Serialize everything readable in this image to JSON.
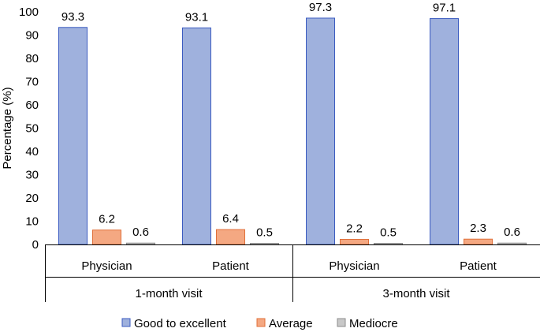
{
  "chart_data": {
    "type": "bar",
    "ylabel": "Percentage (%)",
    "ylim": [
      0,
      100
    ],
    "yticks": [
      0,
      10,
      20,
      30,
      40,
      50,
      60,
      70,
      80,
      90,
      100
    ],
    "groups": [
      {
        "label": "1-month visit",
        "categories": [
          "Physician",
          "Patient"
        ]
      },
      {
        "label": "3-month visit",
        "categories": [
          "Physician",
          "Patient"
        ]
      }
    ],
    "series": [
      {
        "name": "Good to excellent",
        "values": [
          93.3,
          93.1,
          97.3,
          97.1
        ],
        "labels": [
          "93.3",
          "93.1",
          "97.3",
          "97.1"
        ],
        "fill": "#9fb1dd",
        "stroke": "#3b5bc0"
      },
      {
        "name": "Average",
        "values": [
          6.2,
          6.4,
          2.2,
          2.3
        ],
        "labels": [
          "6.2",
          "6.4",
          "2.2",
          "2.3"
        ],
        "fill": "#f4a882",
        "stroke": "#e0703a"
      },
      {
        "name": "Mediocre",
        "values": [
          0.6,
          0.5,
          0.5,
          0.6
        ],
        "labels": [
          "0.6",
          "0.5",
          "0.5",
          "0.6"
        ],
        "fill": "#c8c8c8",
        "stroke": "#8c8c8c"
      }
    ],
    "legend_position": "bottom"
  }
}
